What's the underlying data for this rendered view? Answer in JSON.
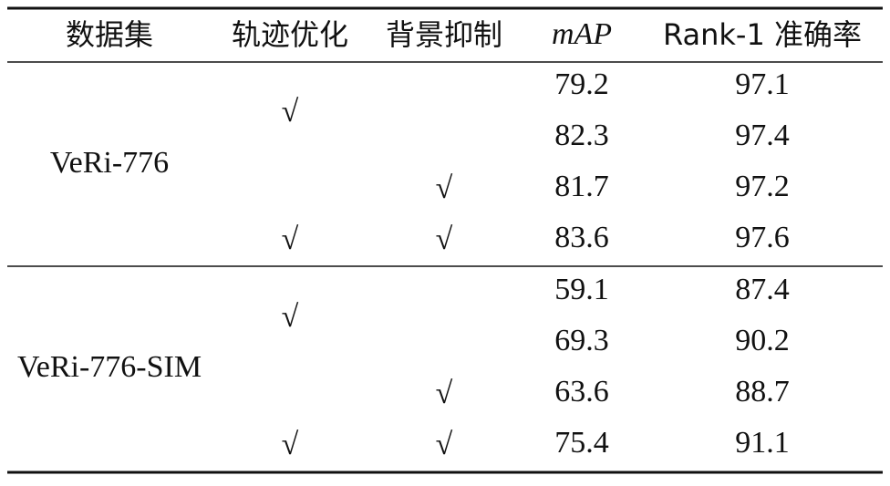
{
  "table": {
    "header": [
      "数据集",
      "轨迹优化",
      "背景抑制",
      "mAP",
      "Rank-1 准确率"
    ],
    "groups": [
      {
        "dataset": "VeRi-776",
        "rows": [
          {
            "map": "79.2",
            "rank1": "97.1"
          },
          {
            "trajectory": "√",
            "map": "82.3",
            "rank1": "97.4"
          },
          {
            "background": "√",
            "map": "81.7",
            "rank1": "97.2"
          },
          {
            "trajectory": "√",
            "background": "√",
            "map": "83.6",
            "rank1": "97.6"
          }
        ]
      },
      {
        "dataset": "VeRi-776-SIM",
        "rows": [
          {
            "map": "59.1",
            "rank1": "87.4"
          },
          {
            "trajectory": "√",
            "map": "69.3",
            "rank1": "90.2"
          },
          {
            "background": "√",
            "map": "63.6",
            "rank1": "88.7"
          },
          {
            "trajectory": "√",
            "background": "√",
            "map": "75.4",
            "rank1": "91.1"
          }
        ]
      }
    ]
  }
}
